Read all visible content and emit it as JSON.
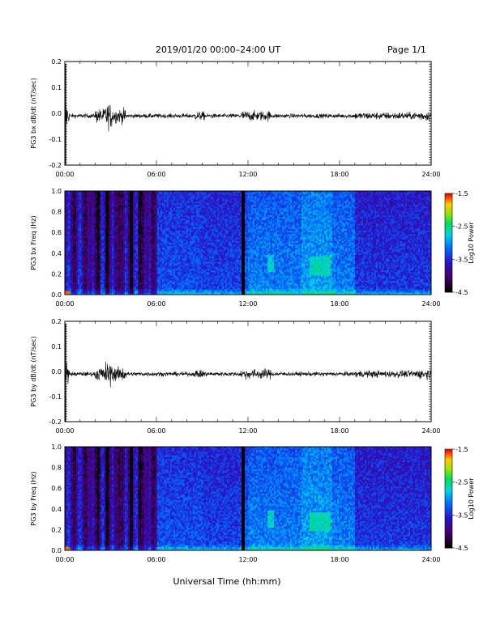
{
  "header": {
    "date_range": "2019/01/20  00:00–24:00 UT",
    "page": "Page 1/1"
  },
  "chart_data": [
    {
      "type": "line",
      "ylabel": "PG3 bx dB/dt (nT/sec)",
      "x_ticks": [
        "00:00",
        "06:00",
        "12:00",
        "18:00",
        "24:00"
      ],
      "y_ticks": [
        "0.2",
        "0.1",
        "0.0",
        "-0.1",
        "-0.2"
      ],
      "ylim": [
        -0.2,
        0.2
      ],
      "xlim_hours": [
        0,
        24
      ],
      "series_description": "dB/dt fluctuations centered near -0.01 nT/sec with bursts near 02–04 UT and 12–13 UT"
    },
    {
      "type": "heatmap",
      "ylabel": "PG3 bx Freq (Hz)",
      "x_ticks": [
        "00:00",
        "06:00",
        "12:00",
        "18:00",
        "24:00"
      ],
      "y_ticks": [
        "1.0",
        "0.8",
        "0.6",
        "0.4",
        "0.2",
        "0.0"
      ],
      "ylim": [
        0,
        1.0
      ],
      "colorbar": {
        "label": "Log10 Power",
        "ticks": [
          "-1.5",
          "-2.5",
          "-3.5",
          "-4.5"
        ],
        "range": [
          -4.5,
          -1.5
        ]
      },
      "data_gap_hours": 11.6
    },
    {
      "type": "line",
      "ylabel": "PG3 by dB/dt (nT/sec)",
      "x_ticks": [
        "00:00",
        "06:00",
        "12:00",
        "18:00",
        "24:00"
      ],
      "y_ticks": [
        "0.2",
        "0.1",
        "0.0",
        "-0.1",
        "-0.2"
      ],
      "ylim": [
        -0.2,
        0.2
      ],
      "xlim_hours": [
        0,
        24
      ]
    },
    {
      "type": "heatmap",
      "ylabel": "PG3 by Freq (Hz)",
      "x_ticks": [
        "00:00",
        "06:00",
        "12:00",
        "18:00",
        "24:00"
      ],
      "y_ticks": [
        "1.0",
        "0.8",
        "0.6",
        "0.4",
        "0.2",
        "0.0"
      ],
      "ylim": [
        0,
        1.0
      ],
      "colorbar": {
        "label": "Log10 Power",
        "ticks": [
          "-1.5",
          "-2.5",
          "-3.5",
          "-4.5"
        ],
        "range": [
          -4.5,
          -1.5
        ]
      },
      "data_gap_hours": 11.6
    }
  ],
  "xlabel": "Universal Time (hh:mm)"
}
